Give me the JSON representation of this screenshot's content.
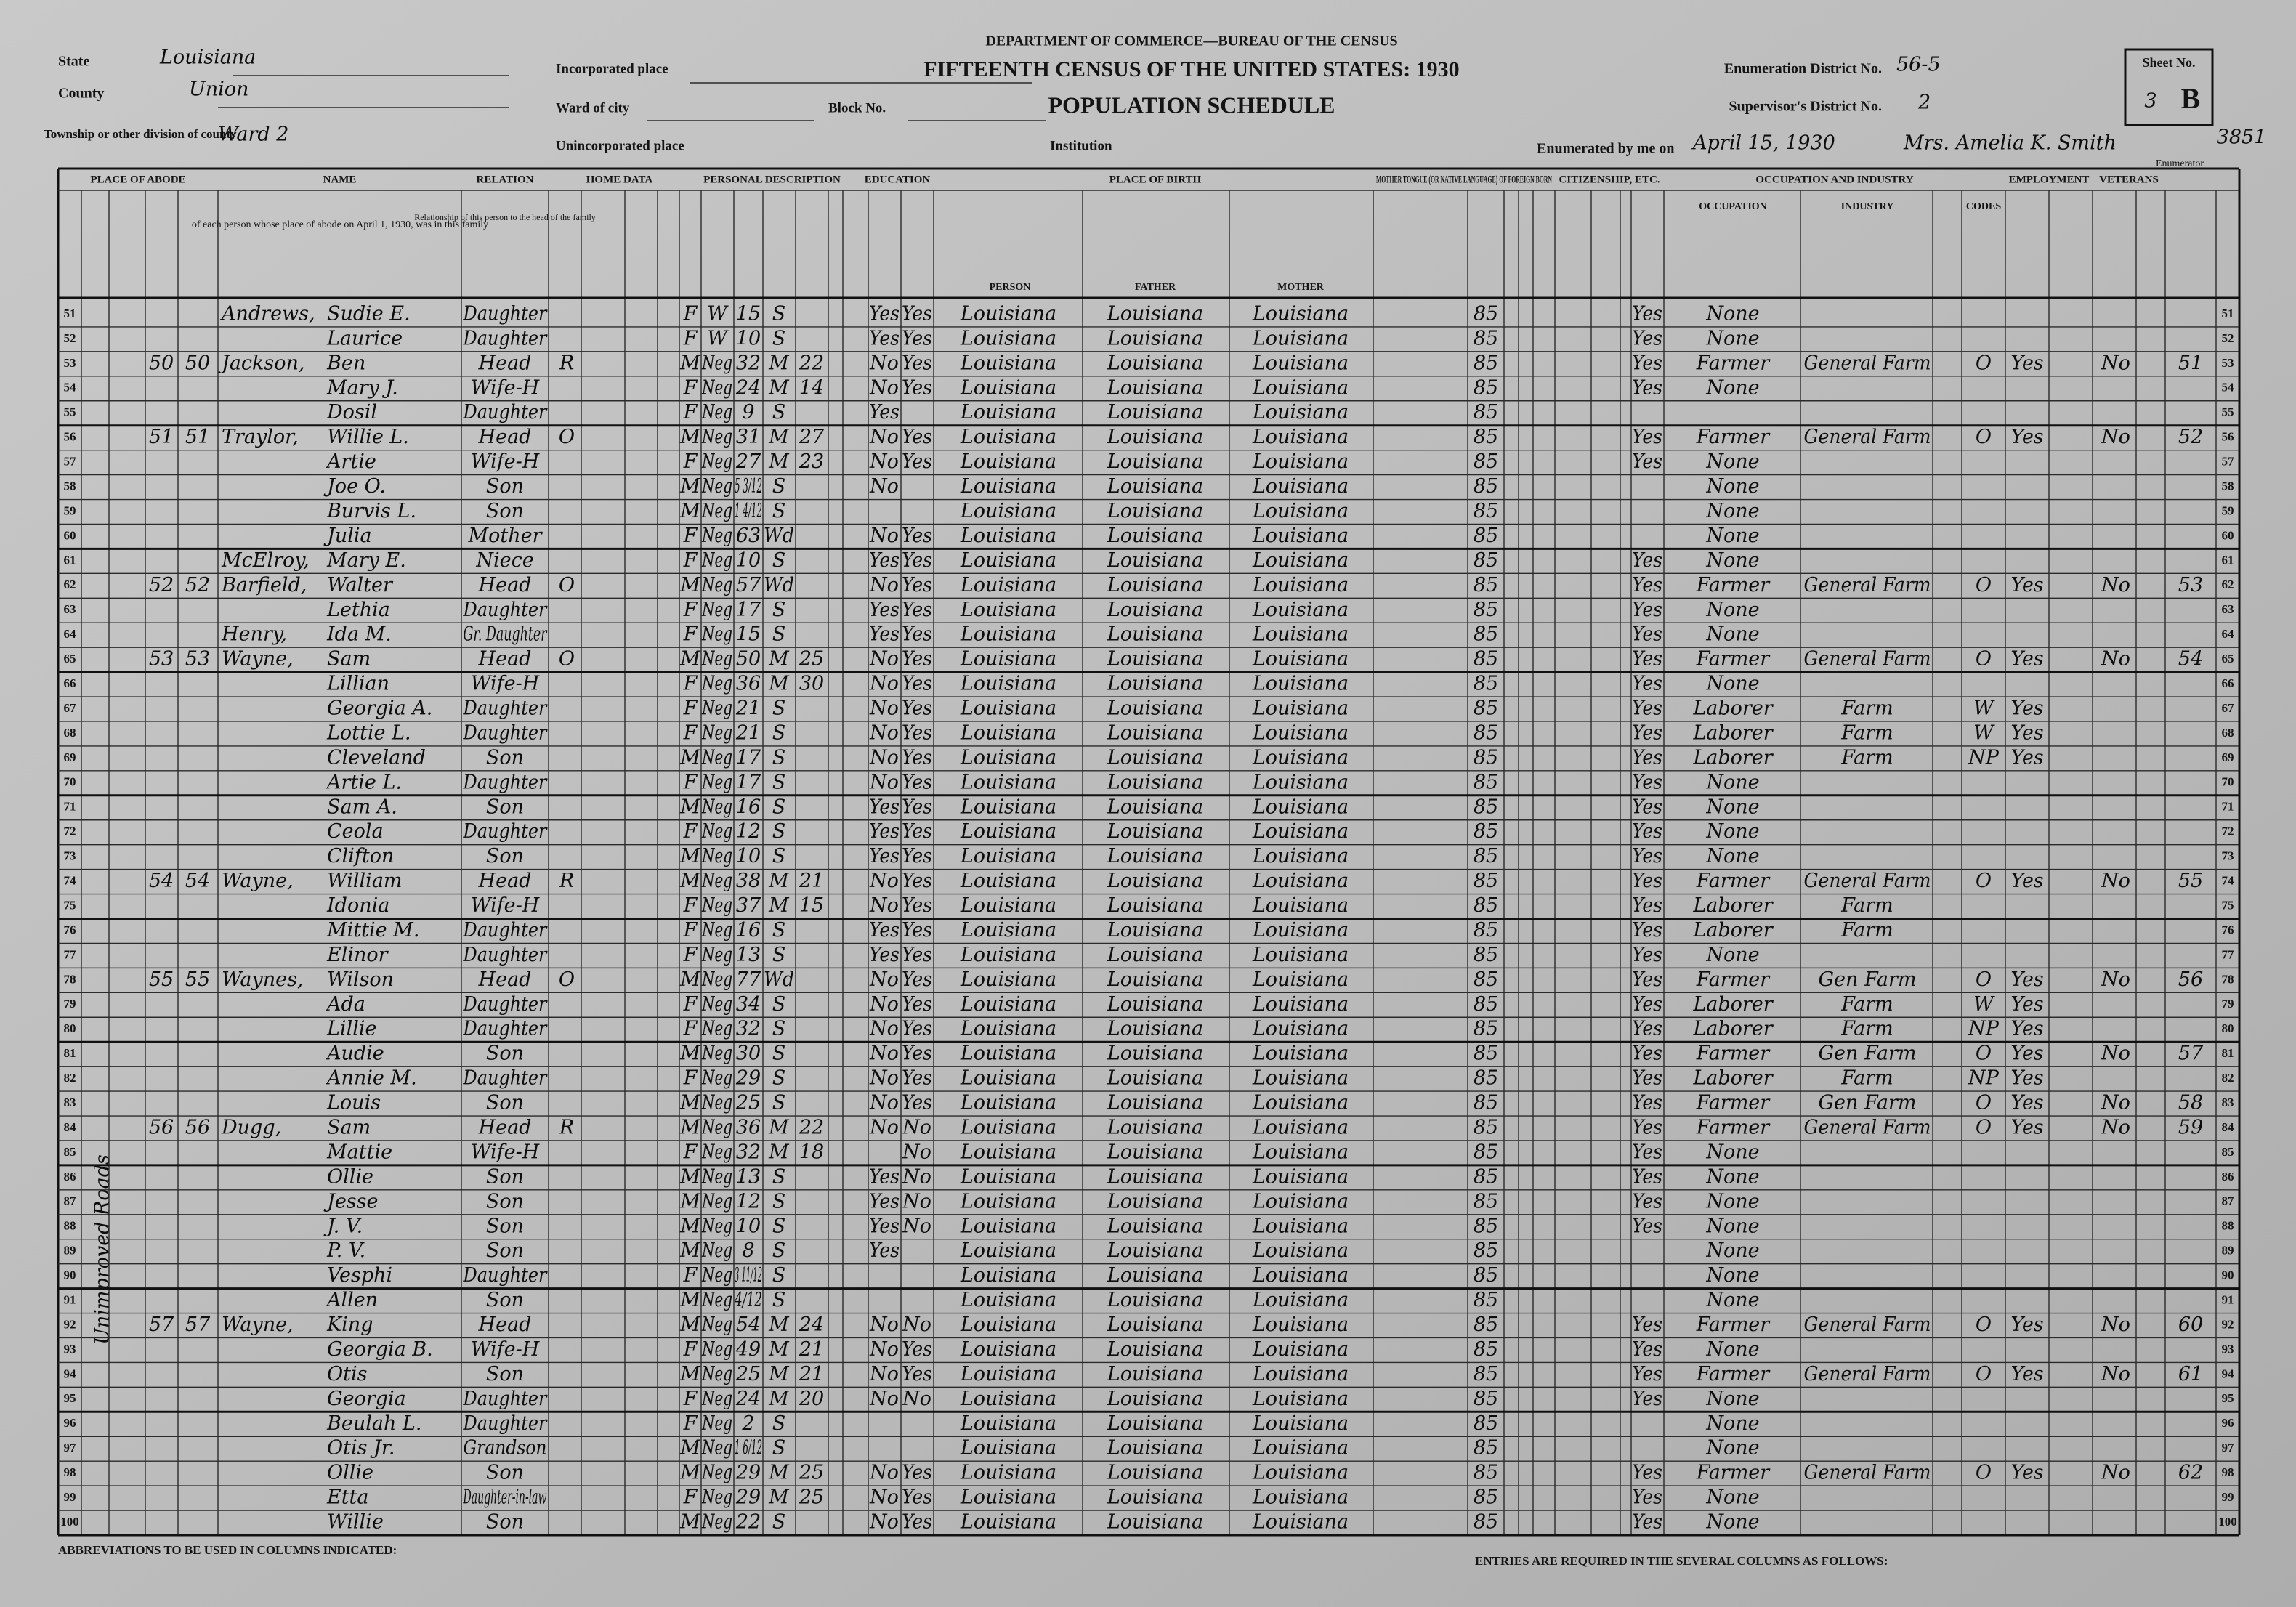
{
  "header": {
    "department": "DEPARTMENT OF COMMERCE—BUREAU OF THE CENSUS",
    "title": "FIFTEENTH CENSUS OF THE UNITED STATES: 1930",
    "schedule": "POPULATION SCHEDULE",
    "state_label": "State",
    "state": "Louisiana",
    "county_label": "County",
    "county": "Union",
    "township_label": "Township or other division of county",
    "township": "Ward 2",
    "incorporated_label": "Incorporated place",
    "ward_label": "Ward of city",
    "block_label": "Block No.",
    "unincorporated_label": "Unincorporated place",
    "institution_label": "Institution",
    "ed_label": "Enumeration District No.",
    "ed": "56-5",
    "supervisor_label": "Supervisor's District No.",
    "supervisor": "2",
    "sheet_label": "Sheet No.",
    "sheet": "3",
    "sheet_side": "B",
    "enumerated_label": "Enumerated by me on",
    "date": "April 15, 1930",
    "enumerator": "Mrs. Amelia K. Smith",
    "enumerator_label": "Enumerator",
    "stamp": "3851"
  },
  "margin_note": "Unimproved Roads",
  "column_groups": [
    "PLACE OF ABODE",
    "NAME",
    "RELATION",
    "HOME DATA",
    "PERSONAL DESCRIPTION",
    "EDUCATION",
    "PLACE OF BIRTH",
    "MOTHER TONGUE (OR NATIVE LANGUAGE) OF FOREIGN BORN",
    "CITIZENSHIP, ETC.",
    "OCCUPATION AND INDUSTRY",
    "EMPLOYMENT",
    "VETERANS"
  ],
  "name_note": "of each person whose place of abode on April 1, 1930, was in this family",
  "relation_note": "Relationship of this person to the head of the family",
  "birth_columns": [
    "PERSON",
    "FATHER",
    "MOTHER"
  ],
  "occupation_columns": [
    "OCCUPATION",
    "INDUSTRY",
    "CODES"
  ],
  "rows": [
    [
      51,
      null,
      null,
      "Andrews,",
      "Sudie E.",
      "Daughter",
      null,
      "F",
      "W",
      15,
      "S",
      null,
      "Yes",
      "Yes",
      "Louisiana",
      "Louisiana",
      "Louisiana",
      85,
      "Yes",
      "None",
      null,
      null,
      null,
      null,
      null
    ],
    [
      52,
      null,
      null,
      null,
      "Laurice",
      "Daughter",
      null,
      "F",
      "W",
      10,
      "S",
      null,
      "Yes",
      "Yes",
      "Louisiana",
      "Louisiana",
      "Louisiana",
      85,
      "Yes",
      "None",
      null,
      null,
      null,
      null,
      null
    ],
    [
      53,
      50,
      50,
      "Jackson,",
      "Ben",
      "Head",
      "R",
      "M",
      "Neg",
      32,
      "M",
      22,
      "No",
      "Yes",
      "Louisiana",
      "Louisiana",
      "Louisiana",
      85,
      "Yes",
      "Farmer",
      "General Farm",
      "O",
      "Yes",
      "No",
      51
    ],
    [
      54,
      null,
      null,
      null,
      "Mary J.",
      "Wife-H",
      null,
      "F",
      "Neg",
      24,
      "M",
      14,
      "No",
      "Yes",
      "Louisiana",
      "Louisiana",
      "Louisiana",
      85,
      "Yes",
      "None",
      null,
      null,
      null,
      null,
      null
    ],
    [
      55,
      null,
      null,
      null,
      "Dosil",
      "Daughter",
      null,
      "F",
      "Neg",
      9,
      "S",
      null,
      "Yes",
      null,
      "Louisiana",
      "Louisiana",
      "Louisiana",
      85,
      null,
      null,
      null,
      null,
      null,
      null,
      null
    ],
    [
      56,
      51,
      51,
      "Traylor,",
      "Willie L.",
      "Head",
      "O",
      "M",
      "Neg",
      31,
      "M",
      27,
      "No",
      "Yes",
      "Louisiana",
      "Louisiana",
      "Louisiana",
      85,
      "Yes",
      "Farmer",
      "General Farm",
      "O",
      "Yes",
      "No",
      52
    ],
    [
      57,
      null,
      null,
      null,
      "Artie",
      "Wife-H",
      null,
      "F",
      "Neg",
      27,
      "M",
      23,
      "No",
      "Yes",
      "Louisiana",
      "Louisiana",
      "Louisiana",
      85,
      "Yes",
      "None",
      null,
      null,
      null,
      null,
      null
    ],
    [
      58,
      null,
      null,
      null,
      "Joe O.",
      "Son",
      null,
      "M",
      "Neg",
      "5 3/12",
      "S",
      null,
      "No",
      null,
      "Louisiana",
      "Louisiana",
      "Louisiana",
      85,
      null,
      "None",
      null,
      null,
      null,
      null,
      null
    ],
    [
      59,
      null,
      null,
      null,
      "Burvis L.",
      "Son",
      null,
      "M",
      "Neg",
      "1 4/12",
      "S",
      null,
      null,
      null,
      "Louisiana",
      "Louisiana",
      "Louisiana",
      85,
      null,
      "None",
      null,
      null,
      null,
      null,
      null
    ],
    [
      60,
      null,
      null,
      null,
      "Julia",
      "Mother",
      null,
      "F",
      "Neg",
      63,
      "Wd",
      null,
      "No",
      "Yes",
      "Louisiana",
      "Louisiana",
      "Louisiana",
      85,
      null,
      "None",
      null,
      null,
      null,
      null,
      null
    ],
    [
      61,
      null,
      null,
      "McElroy,",
      "Mary E.",
      "Niece",
      null,
      "F",
      "Neg",
      10,
      "S",
      null,
      "Yes",
      "Yes",
      "Louisiana",
      "Louisiana",
      "Louisiana",
      85,
      "Yes",
      "None",
      null,
      null,
      null,
      null,
      null
    ],
    [
      62,
      52,
      52,
      "Barfield,",
      "Walter",
      "Head",
      "O",
      "M",
      "Neg",
      57,
      "Wd",
      null,
      "No",
      "Yes",
      "Louisiana",
      "Louisiana",
      "Louisiana",
      85,
      "Yes",
      "Farmer",
      "General Farm",
      "O",
      "Yes",
      "No",
      53
    ],
    [
      63,
      null,
      null,
      null,
      "Lethia",
      "Daughter",
      null,
      "F",
      "Neg",
      17,
      "S",
      null,
      "Yes",
      "Yes",
      "Louisiana",
      "Louisiana",
      "Louisiana",
      85,
      "Yes",
      "None",
      null,
      null,
      null,
      null,
      null
    ],
    [
      64,
      null,
      null,
      "Henry,",
      "Ida M.",
      "Gr. Daughter",
      null,
      "F",
      "Neg",
      15,
      "S",
      null,
      "Yes",
      "Yes",
      "Louisiana",
      "Louisiana",
      "Louisiana",
      85,
      "Yes",
      "None",
      null,
      null,
      null,
      null,
      null
    ],
    [
      65,
      53,
      53,
      "Wayne,",
      "Sam",
      "Head",
      "O",
      "M",
      "Neg",
      50,
      "M",
      25,
      "No",
      "Yes",
      "Louisiana",
      "Louisiana",
      "Louisiana",
      85,
      "Yes",
      "Farmer",
      "General Farm",
      "O",
      "Yes",
      "No",
      54
    ],
    [
      66,
      null,
      null,
      null,
      "Lillian",
      "Wife-H",
      null,
      "F",
      "Neg",
      36,
      "M",
      30,
      "No",
      "Yes",
      "Louisiana",
      "Louisiana",
      "Louisiana",
      85,
      "Yes",
      "None",
      null,
      null,
      null,
      null,
      null
    ],
    [
      67,
      null,
      null,
      null,
      "Georgia A.",
      "Daughter",
      null,
      "F",
      "Neg",
      21,
      "S",
      null,
      "No",
      "Yes",
      "Louisiana",
      "Louisiana",
      "Louisiana",
      85,
      "Yes",
      "Laborer",
      "Farm",
      "W",
      "Yes",
      null,
      null
    ],
    [
      68,
      null,
      null,
      null,
      "Lottie L.",
      "Daughter",
      null,
      "F",
      "Neg",
      21,
      "S",
      null,
      "No",
      "Yes",
      "Louisiana",
      "Louisiana",
      "Louisiana",
      85,
      "Yes",
      "Laborer",
      "Farm",
      "W",
      "Yes",
      null,
      null
    ],
    [
      69,
      null,
      null,
      null,
      "Cleveland",
      "Son",
      null,
      "M",
      "Neg",
      17,
      "S",
      null,
      "No",
      "Yes",
      "Louisiana",
      "Louisiana",
      "Louisiana",
      85,
      "Yes",
      "Laborer",
      "Farm",
      "NP",
      "Yes",
      null,
      null
    ],
    [
      70,
      null,
      null,
      null,
      "Artie L.",
      "Daughter",
      null,
      "F",
      "Neg",
      17,
      "S",
      null,
      "No",
      "Yes",
      "Louisiana",
      "Louisiana",
      "Louisiana",
      85,
      "Yes",
      "None",
      null,
      null,
      null,
      null,
      null
    ],
    [
      71,
      null,
      null,
      null,
      "Sam A.",
      "Son",
      null,
      "M",
      "Neg",
      16,
      "S",
      null,
      "Yes",
      "Yes",
      "Louisiana",
      "Louisiana",
      "Louisiana",
      85,
      "Yes",
      "None",
      null,
      null,
      null,
      null,
      null
    ],
    [
      72,
      null,
      null,
      null,
      "Ceola",
      "Daughter",
      null,
      "F",
      "Neg",
      12,
      "S",
      null,
      "Yes",
      "Yes",
      "Louisiana",
      "Louisiana",
      "Louisiana",
      85,
      "Yes",
      "None",
      null,
      null,
      null,
      null,
      null
    ],
    [
      73,
      null,
      null,
      null,
      "Clifton",
      "Son",
      null,
      "M",
      "Neg",
      10,
      "S",
      null,
      "Yes",
      "Yes",
      "Louisiana",
      "Louisiana",
      "Louisiana",
      85,
      "Yes",
      "None",
      null,
      null,
      null,
      null,
      null
    ],
    [
      74,
      54,
      54,
      "Wayne,",
      "William",
      "Head",
      "R",
      "M",
      "Neg",
      38,
      "M",
      21,
      "No",
      "Yes",
      "Louisiana",
      "Louisiana",
      "Louisiana",
      85,
      "Yes",
      "Farmer",
      "General Farm",
      "O",
      "Yes",
      "No",
      55
    ],
    [
      75,
      null,
      null,
      null,
      "Idonia",
      "Wife-H",
      null,
      "F",
      "Neg",
      37,
      "M",
      15,
      "No",
      "Yes",
      "Louisiana",
      "Louisiana",
      "Louisiana",
      85,
      "Yes",
      "Laborer",
      "Farm",
      null,
      null,
      null,
      null
    ],
    [
      76,
      null,
      null,
      null,
      "Mittie M.",
      "Daughter",
      null,
      "F",
      "Neg",
      16,
      "S",
      null,
      "Yes",
      "Yes",
      "Louisiana",
      "Louisiana",
      "Louisiana",
      85,
      "Yes",
      "Laborer",
      "Farm",
      null,
      null,
      null,
      null
    ],
    [
      77,
      null,
      null,
      null,
      "Elinor",
      "Daughter",
      null,
      "F",
      "Neg",
      13,
      "S",
      null,
      "Yes",
      "Yes",
      "Louisiana",
      "Louisiana",
      "Louisiana",
      85,
      "Yes",
      "None",
      null,
      null,
      null,
      null,
      null
    ],
    [
      78,
      55,
      55,
      "Waynes,",
      "Wilson",
      "Head",
      "O",
      "M",
      "Neg",
      77,
      "Wd",
      null,
      "No",
      "Yes",
      "Louisiana",
      "Louisiana",
      "Louisiana",
      85,
      "Yes",
      "Farmer",
      "Gen Farm",
      "O",
      "Yes",
      "No",
      56
    ],
    [
      79,
      null,
      null,
      null,
      "Ada",
      "Daughter",
      null,
      "F",
      "Neg",
      34,
      "S",
      null,
      "No",
      "Yes",
      "Louisiana",
      "Louisiana",
      "Louisiana",
      85,
      "Yes",
      "Laborer",
      "Farm",
      "W",
      "Yes",
      null,
      null
    ],
    [
      80,
      null,
      null,
      null,
      "Lillie",
      "Daughter",
      null,
      "F",
      "Neg",
      32,
      "S",
      null,
      "No",
      "Yes",
      "Louisiana",
      "Louisiana",
      "Louisiana",
      85,
      "Yes",
      "Laborer",
      "Farm",
      "NP",
      "Yes",
      null,
      null
    ],
    [
      81,
      null,
      null,
      null,
      "Audie",
      "Son",
      null,
      "M",
      "Neg",
      30,
      "S",
      null,
      "No",
      "Yes",
      "Louisiana",
      "Louisiana",
      "Louisiana",
      85,
      "Yes",
      "Farmer",
      "Gen Farm",
      "O",
      "Yes",
      "No",
      57
    ],
    [
      82,
      null,
      null,
      null,
      "Annie M.",
      "Daughter",
      null,
      "F",
      "Neg",
      29,
      "S",
      null,
      "No",
      "Yes",
      "Louisiana",
      "Louisiana",
      "Louisiana",
      85,
      "Yes",
      "Laborer",
      "Farm",
      "NP",
      "Yes",
      null,
      null
    ],
    [
      83,
      null,
      null,
      null,
      "Louis",
      "Son",
      null,
      "M",
      "Neg",
      25,
      "S",
      null,
      "No",
      "Yes",
      "Louisiana",
      "Louisiana",
      "Louisiana",
      85,
      "Yes",
      "Farmer",
      "Gen Farm",
      "O",
      "Yes",
      "No",
      58
    ],
    [
      84,
      56,
      56,
      "Dugg,",
      "Sam",
      "Head",
      "R",
      "M",
      "Neg",
      36,
      "M",
      22,
      "No",
      "No",
      "Louisiana",
      "Louisiana",
      "Louisiana",
      85,
      "Yes",
      "Farmer",
      "General Farm",
      "O",
      "Yes",
      "No",
      59
    ],
    [
      85,
      null,
      null,
      null,
      "Mattie",
      "Wife-H",
      null,
      "F",
      "Neg",
      32,
      "M",
      18,
      null,
      "No",
      "Louisiana",
      "Louisiana",
      "Louisiana",
      85,
      "Yes",
      "None",
      null,
      null,
      null,
      null,
      null
    ],
    [
      86,
      null,
      null,
      null,
      "Ollie",
      "Son",
      null,
      "M",
      "Neg",
      13,
      "S",
      null,
      "Yes",
      "No",
      "Louisiana",
      "Louisiana",
      "Louisiana",
      85,
      "Yes",
      "None",
      null,
      null,
      null,
      null,
      null
    ],
    [
      87,
      null,
      null,
      null,
      "Jesse",
      "Son",
      null,
      "M",
      "Neg",
      12,
      "S",
      null,
      "Yes",
      "No",
      "Louisiana",
      "Louisiana",
      "Louisiana",
      85,
      "Yes",
      "None",
      null,
      null,
      null,
      null,
      null
    ],
    [
      88,
      null,
      null,
      null,
      "J. V.",
      "Son",
      null,
      "M",
      "Neg",
      10,
      "S",
      null,
      "Yes",
      "No",
      "Louisiana",
      "Louisiana",
      "Louisiana",
      85,
      "Yes",
      "None",
      null,
      null,
      null,
      null,
      null
    ],
    [
      89,
      null,
      null,
      null,
      "P. V.",
      "Son",
      null,
      "M",
      "Neg",
      8,
      "S",
      null,
      "Yes",
      null,
      "Louisiana",
      "Louisiana",
      "Louisiana",
      85,
      null,
      "None",
      null,
      null,
      null,
      null,
      null
    ],
    [
      90,
      null,
      null,
      null,
      "Vesphi",
      "Daughter",
      null,
      "F",
      "Neg",
      "3 11/12",
      "S",
      null,
      null,
      null,
      "Louisiana",
      "Louisiana",
      "Louisiana",
      85,
      null,
      "None",
      null,
      null,
      null,
      null,
      null
    ],
    [
      91,
      null,
      null,
      null,
      "Allen",
      "Son",
      null,
      "M",
      "Neg",
      "4/12",
      "S",
      null,
      null,
      null,
      "Louisiana",
      "Louisiana",
      "Louisiana",
      85,
      null,
      "None",
      null,
      null,
      null,
      null,
      null
    ],
    [
      92,
      57,
      57,
      "Wayne,",
      "King",
      "Head",
      null,
      "M",
      "Neg",
      54,
      "M",
      24,
      "No",
      "No",
      "Louisiana",
      "Louisiana",
      "Louisiana",
      85,
      "Yes",
      "Farmer",
      "General Farm",
      "O",
      "Yes",
      "No",
      60
    ],
    [
      93,
      null,
      null,
      null,
      "Georgia B.",
      "Wife-H",
      null,
      "F",
      "Neg",
      49,
      "M",
      21,
      "No",
      "Yes",
      "Louisiana",
      "Louisiana",
      "Louisiana",
      85,
      "Yes",
      "None",
      null,
      null,
      null,
      null,
      null
    ],
    [
      94,
      null,
      null,
      null,
      "Otis",
      "Son",
      null,
      "M",
      "Neg",
      25,
      "M",
      21,
      "No",
      "Yes",
      "Louisiana",
      "Louisiana",
      "Louisiana",
      85,
      "Yes",
      "Farmer",
      "General Farm",
      "O",
      "Yes",
      "No",
      61
    ],
    [
      95,
      null,
      null,
      null,
      "Georgia",
      "Daughter",
      null,
      "F",
      "Neg",
      24,
      "M",
      20,
      "No",
      "No",
      "Louisiana",
      "Louisiana",
      "Louisiana",
      85,
      "Yes",
      "None",
      null,
      null,
      null,
      null,
      null
    ],
    [
      96,
      null,
      null,
      null,
      "Beulah L.",
      "Daughter",
      null,
      "F",
      "Neg",
      2,
      "S",
      null,
      null,
      null,
      "Louisiana",
      "Louisiana",
      "Louisiana",
      85,
      null,
      "None",
      null,
      null,
      null,
      null,
      null
    ],
    [
      97,
      null,
      null,
      null,
      "Otis Jr.",
      "Grandson",
      null,
      "M",
      "Neg",
      "1 6/12",
      "S",
      null,
      null,
      null,
      "Louisiana",
      "Louisiana",
      "Louisiana",
      85,
      null,
      "None",
      null,
      null,
      null,
      null,
      null
    ],
    [
      98,
      null,
      null,
      null,
      "Ollie",
      "Son",
      null,
      "M",
      "Neg",
      29,
      "M",
      25,
      "No",
      "Yes",
      "Louisiana",
      "Louisiana",
      "Louisiana",
      85,
      "Yes",
      "Farmer",
      "General Farm",
      "O",
      "Yes",
      "No",
      62
    ],
    [
      99,
      null,
      null,
      null,
      "Etta",
      "Daughter-in-law",
      null,
      "F",
      "Neg",
      29,
      "M",
      25,
      "No",
      "Yes",
      "Louisiana",
      "Louisiana",
      "Louisiana",
      85,
      "Yes",
      "None",
      null,
      null,
      null,
      null,
      null
    ],
    [
      100,
      null,
      null,
      null,
      "Willie",
      "Son",
      null,
      "M",
      "Neg",
      22,
      "S",
      null,
      "No",
      "Yes",
      "Louisiana",
      "Louisiana",
      "Louisiana",
      85,
      "Yes",
      "None",
      null,
      null,
      null,
      null,
      null
    ]
  ],
  "footer_left": "ABBREVIATIONS TO BE USED IN COLUMNS INDICATED:",
  "footer_right": "ENTRIES ARE REQUIRED IN THE SEVERAL COLUMNS AS FOLLOWS:"
}
